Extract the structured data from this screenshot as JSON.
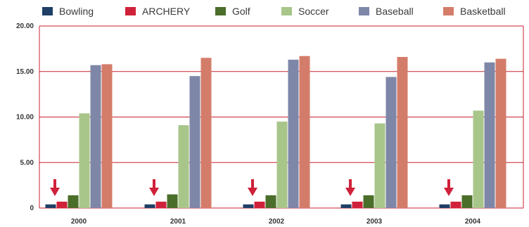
{
  "chart_data": {
    "type": "bar",
    "categories": [
      "2000",
      "2001",
      "2002",
      "2003",
      "2004"
    ],
    "ylim": [
      0,
      20
    ],
    "yticks": [
      "20.00",
      "15.00",
      "10.00",
      "5.00",
      "0"
    ],
    "ytick_values": [
      20,
      15,
      10,
      5,
      0
    ],
    "grid": true,
    "legend_position": "top",
    "series": [
      {
        "name": "Bowling",
        "color": "#1f3f66",
        "values": [
          0.4,
          0.4,
          0.4,
          0.4,
          0.4
        ]
      },
      {
        "name": "ARCHERY",
        "color": "#d0213a",
        "values": [
          0.7,
          0.7,
          0.7,
          0.7,
          0.7
        ]
      },
      {
        "name": "Golf",
        "color": "#4b6e2a",
        "values": [
          1.4,
          1.5,
          1.4,
          1.4,
          1.4
        ]
      },
      {
        "name": "Soccer",
        "color": "#a8c68a",
        "values": [
          10.4,
          9.1,
          9.5,
          9.3,
          10.7
        ]
      },
      {
        "name": "Baseball",
        "color": "#7f87a8",
        "values": [
          15.7,
          14.5,
          16.3,
          14.4,
          16.0
        ]
      },
      {
        "name": "Basketball",
        "color": "#d47c6a",
        "values": [
          15.8,
          16.5,
          16.7,
          16.6,
          16.4
        ]
      }
    ],
    "annotations": {
      "arrow_series": "ARCHERY",
      "arrow_color": "#d0213a",
      "arrow_icon": "down-arrow-icon"
    }
  },
  "colors": {
    "grid": "#c8222f",
    "frame": "#c8222f"
  }
}
